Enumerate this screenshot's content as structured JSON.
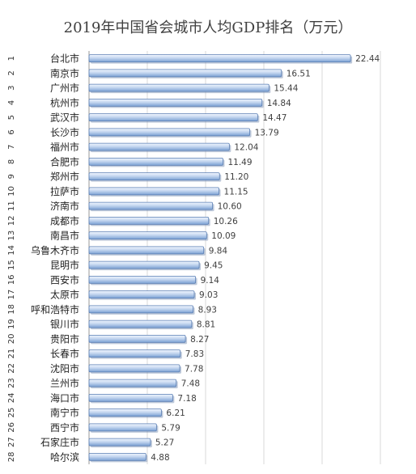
{
  "colors": {
    "bar_top": "#f1f6fe",
    "bar_mid": "#c5d7f0",
    "bar_bottom": "#7aa0d3",
    "bar_border": "#5b7fb4",
    "grid": "#d9d9d9"
  },
  "chart_data": {
    "type": "bar",
    "orientation": "horizontal",
    "title": "2019年中国省会城市人均GDP排名（万元）",
    "ranks": [
      "1",
      "2",
      "3",
      "4",
      "5",
      "6",
      "7",
      "8",
      "9",
      "10",
      "11",
      "12",
      "13",
      "14",
      "15",
      "16",
      "17",
      "18",
      "19",
      "20",
      "21",
      "22",
      "23",
      "24",
      "25",
      "26",
      "27",
      "28"
    ],
    "categories": [
      "台北市",
      "南京市",
      "广州市",
      "杭州市",
      "武汉市",
      "长沙市",
      "福州市",
      "合肥市",
      "郑州市",
      "拉萨市",
      "济南市",
      "成都市",
      "南昌市",
      "乌鲁木齐市",
      "昆明市",
      "西安市",
      "太原市",
      "呼和浩特市",
      "银川市",
      "贵阳市",
      "长春市",
      "沈阳市",
      "兰州市",
      "海口市",
      "南宁市",
      "西宁市",
      "石家庄市",
      "哈尔滨"
    ],
    "values": [
      22.44,
      16.51,
      15.44,
      14.84,
      14.47,
      13.79,
      12.04,
      11.49,
      11.2,
      11.15,
      10.6,
      10.26,
      10.09,
      9.84,
      9.45,
      9.14,
      9.03,
      8.93,
      8.81,
      8.27,
      7.83,
      7.78,
      7.48,
      7.18,
      6.21,
      5.79,
      5.27,
      4.88
    ],
    "value_labels": [
      "22.44",
      "16.51",
      "15.44",
      "14.84",
      "14.47",
      "13.79",
      "12.04",
      "11.49",
      "11.20",
      "11.15",
      "10.60",
      "10.26",
      "10.09",
      "9.84",
      "9.45",
      "9.14",
      "9.03",
      "8.93",
      "8.81",
      "8.27",
      "7.83",
      "7.78",
      "7.48",
      "7.18",
      "6.21",
      "5.79",
      "5.27",
      "4.88"
    ],
    "xlim": [
      0,
      25
    ],
    "grid": true,
    "legend": "none"
  }
}
